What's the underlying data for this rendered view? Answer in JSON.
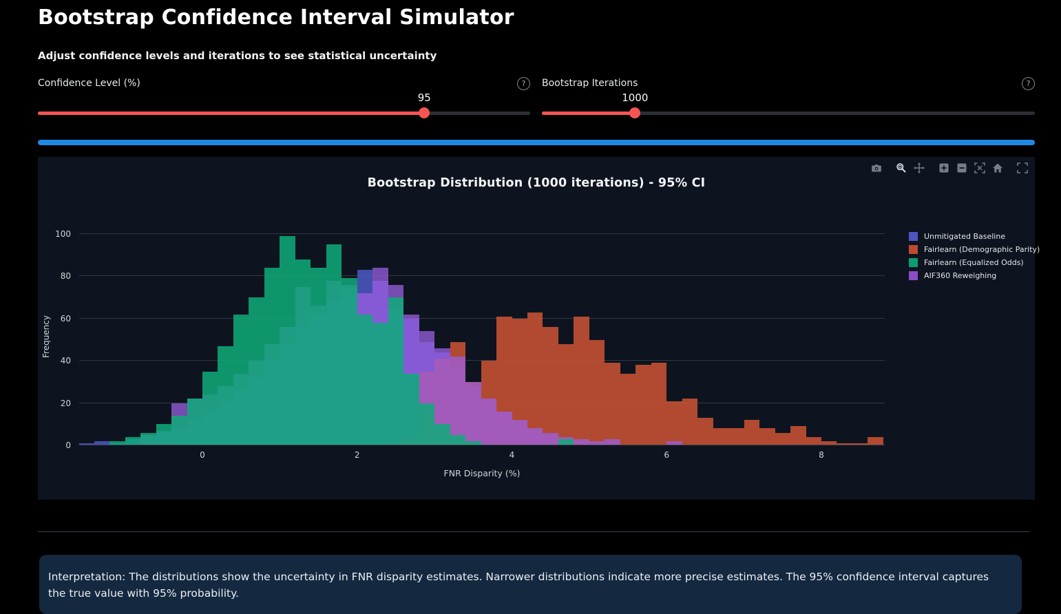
{
  "page": {
    "title": "Bootstrap Confidence Interval Simulator",
    "subtitle": "Adjust confidence levels and iterations to see statistical uncertainty"
  },
  "controls": {
    "help_icon_symbol": "?",
    "confidence": {
      "label": "Confidence Level (%)",
      "value": "95",
      "percent": 78.5,
      "fill_color": "#f85454"
    },
    "iterations": {
      "label": "Bootstrap Iterations",
      "value": "1000",
      "percent": 18.9,
      "fill_color": "#f85454"
    }
  },
  "progress_bar": {
    "color": "#1f88e4"
  },
  "chart": {
    "title": "Bootstrap Distribution (1000 iterations) - 95% CI",
    "modebar_icons": [
      "camera-icon",
      "zoom-icon",
      "pan-icon",
      "zoom-in-icon",
      "zoom-out-icon",
      "autoscale-icon",
      "reset-axes-icon",
      "fullscreen-icon"
    ]
  },
  "chart_data": {
    "type": "histogram",
    "barmode": "overlay",
    "title": "Bootstrap Distribution (1000 iterations) - 95% CI",
    "xlabel": "FNR Disparity (%)",
    "ylabel": "Frequency",
    "xlim": [
      -1.6,
      8.8
    ],
    "ylim": [
      0,
      103
    ],
    "x_ticks": [
      0,
      2,
      4,
      6,
      8
    ],
    "y_ticks": [
      0,
      20,
      40,
      60,
      80,
      100
    ],
    "bin_width": 0.2,
    "grid": true,
    "legend_position": "right",
    "draw_order": [
      0,
      1,
      3,
      2
    ],
    "series": [
      {
        "name": "Unmitigated Baseline",
        "color": "#4c55c3",
        "rgba": "rgba(82,95,214,0.78)",
        "bins": [
          [
            -1.5,
            1
          ],
          [
            -1.3,
            2
          ],
          [
            -1.1,
            1
          ],
          [
            -0.9,
            3
          ],
          [
            -0.7,
            4
          ],
          [
            -0.5,
            6
          ],
          [
            -0.3,
            8
          ],
          [
            -0.1,
            12
          ],
          [
            0.1,
            16
          ],
          [
            0.3,
            21
          ],
          [
            0.5,
            26
          ],
          [
            0.7,
            32
          ],
          [
            0.9,
            40
          ],
          [
            1.1,
            48
          ],
          [
            1.3,
            56
          ],
          [
            1.5,
            62
          ],
          [
            1.7,
            68
          ],
          [
            1.9,
            74
          ],
          [
            2.1,
            83
          ],
          [
            2.3,
            78
          ],
          [
            2.5,
            65
          ],
          [
            2.7,
            60
          ],
          [
            2.9,
            49
          ],
          [
            3.1,
            44
          ],
          [
            3.3,
            36
          ],
          [
            3.5,
            28
          ],
          [
            3.7,
            22
          ],
          [
            3.9,
            16
          ],
          [
            4.1,
            12
          ],
          [
            4.3,
            8
          ],
          [
            4.5,
            5
          ],
          [
            4.7,
            3
          ],
          [
            4.9,
            2
          ]
        ]
      },
      {
        "name": "Fairlearn (Demographic Parity)",
        "color": "#bc4b31",
        "rgba": "rgba(206,84,52,0.85)",
        "bins": [
          [
            2.7,
            4
          ],
          [
            2.9,
            35
          ],
          [
            3.1,
            41
          ],
          [
            3.3,
            49
          ],
          [
            3.5,
            30
          ],
          [
            3.7,
            40
          ],
          [
            3.9,
            61
          ],
          [
            4.1,
            60
          ],
          [
            4.3,
            63
          ],
          [
            4.5,
            56
          ],
          [
            4.7,
            48
          ],
          [
            4.9,
            61
          ],
          [
            5.1,
            50
          ],
          [
            5.3,
            39
          ],
          [
            5.5,
            34
          ],
          [
            5.7,
            38
          ],
          [
            5.9,
            39
          ],
          [
            6.1,
            21
          ],
          [
            6.3,
            22
          ],
          [
            6.5,
            13
          ],
          [
            6.7,
            8
          ],
          [
            6.9,
            8
          ],
          [
            7.1,
            12
          ],
          [
            7.3,
            8
          ],
          [
            7.5,
            6
          ],
          [
            7.7,
            9
          ],
          [
            7.9,
            4
          ],
          [
            8.1,
            2
          ],
          [
            8.3,
            1
          ],
          [
            8.5,
            1
          ],
          [
            8.7,
            4
          ]
        ]
      },
      {
        "name": "Fairlearn (Equalized Odds)",
        "color": "#0d9b70",
        "rgba": "rgba(14,172,122,0.85)",
        "bins": [
          [
            -1.1,
            2
          ],
          [
            -0.9,
            4
          ],
          [
            -0.7,
            6
          ],
          [
            -0.5,
            10
          ],
          [
            -0.3,
            14
          ],
          [
            -0.1,
            22
          ],
          [
            0.1,
            35
          ],
          [
            0.3,
            47
          ],
          [
            0.5,
            62
          ],
          [
            0.7,
            70
          ],
          [
            0.9,
            84
          ],
          [
            1.1,
            99
          ],
          [
            1.3,
            88
          ],
          [
            1.5,
            84
          ],
          [
            1.7,
            95
          ],
          [
            1.9,
            79
          ],
          [
            2.1,
            62
          ],
          [
            2.3,
            58
          ],
          [
            2.5,
            70
          ],
          [
            2.7,
            34
          ],
          [
            2.9,
            20
          ],
          [
            3.1,
            10
          ],
          [
            3.3,
            5
          ],
          [
            3.5,
            2
          ],
          [
            4.7,
            3
          ]
        ]
      },
      {
        "name": "AIF360 Reweighing",
        "color": "#8c4cc8",
        "rgba": "rgba(155,95,226,0.75)",
        "bins": [
          [
            -0.7,
            5
          ],
          [
            -0.5,
            7
          ],
          [
            -0.3,
            20
          ],
          [
            -0.1,
            22
          ],
          [
            0.1,
            24
          ],
          [
            0.3,
            28
          ],
          [
            0.5,
            34
          ],
          [
            0.7,
            40
          ],
          [
            0.9,
            48
          ],
          [
            1.1,
            56
          ],
          [
            1.3,
            75
          ],
          [
            1.5,
            66
          ],
          [
            1.7,
            78
          ],
          [
            1.9,
            76
          ],
          [
            2.1,
            72
          ],
          [
            2.3,
            84
          ],
          [
            2.5,
            76
          ],
          [
            2.7,
            62
          ],
          [
            2.9,
            54
          ],
          [
            3.1,
            46
          ],
          [
            3.3,
            42
          ],
          [
            3.5,
            30
          ],
          [
            3.7,
            22
          ],
          [
            3.9,
            16
          ],
          [
            4.1,
            12
          ],
          [
            4.3,
            8
          ],
          [
            4.5,
            6
          ],
          [
            4.7,
            4
          ],
          [
            4.9,
            3
          ],
          [
            5.1,
            2
          ],
          [
            5.3,
            3
          ],
          [
            6.1,
            2
          ]
        ]
      }
    ]
  },
  "interpretation": {
    "text": "Interpretation: The distributions show the uncertainty in FNR disparity estimates. Narrower distributions indicate more precise estimates. The 95% confidence interval captures the true value with 95% probability."
  }
}
